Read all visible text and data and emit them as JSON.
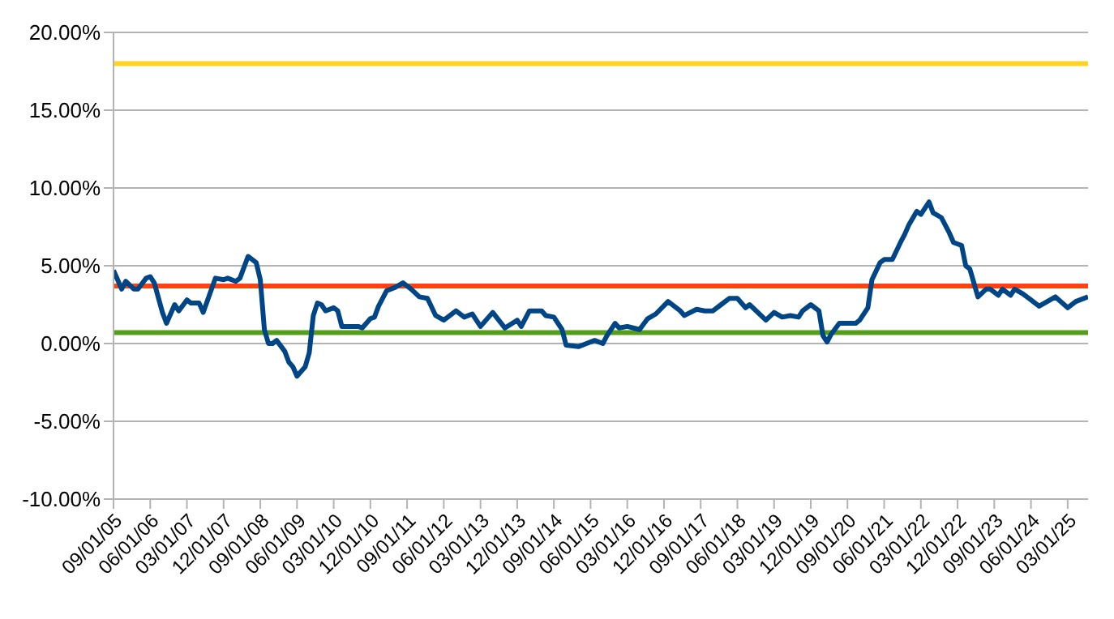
{
  "chart_data": {
    "type": "line",
    "xlim": [
      "2005-09",
      "2025-08"
    ],
    "xticks": [
      {
        "value": "2005-09",
        "label": "09/01/05"
      },
      {
        "value": "2006-06",
        "label": "06/01/06"
      },
      {
        "value": "2007-03",
        "label": "03/01/07"
      },
      {
        "value": "2007-12",
        "label": "12/01/07"
      },
      {
        "value": "2008-09",
        "label": "09/01/08"
      },
      {
        "value": "2009-06",
        "label": "06/01/09"
      },
      {
        "value": "2010-03",
        "label": "03/01/10"
      },
      {
        "value": "2010-12",
        "label": "12/01/10"
      },
      {
        "value": "2011-09",
        "label": "09/01/11"
      },
      {
        "value": "2012-06",
        "label": "06/01/12"
      },
      {
        "value": "2013-03",
        "label": "03/01/13"
      },
      {
        "value": "2013-12",
        "label": "12/01/13"
      },
      {
        "value": "2014-09",
        "label": "09/01/14"
      },
      {
        "value": "2015-06",
        "label": "06/01/15"
      },
      {
        "value": "2016-03",
        "label": "03/01/16"
      },
      {
        "value": "2016-12",
        "label": "12/01/16"
      },
      {
        "value": "2017-09",
        "label": "09/01/17"
      },
      {
        "value": "2018-06",
        "label": "06/01/18"
      },
      {
        "value": "2019-03",
        "label": "03/01/19"
      },
      {
        "value": "2019-12",
        "label": "12/01/19"
      },
      {
        "value": "2020-09",
        "label": "09/01/20"
      },
      {
        "value": "2021-06",
        "label": "06/01/21"
      },
      {
        "value": "2022-03",
        "label": "03/01/22"
      },
      {
        "value": "2022-12",
        "label": "12/01/22"
      },
      {
        "value": "2023-09",
        "label": "09/01/23"
      },
      {
        "value": "2024-06",
        "label": "06/01/24"
      },
      {
        "value": "2025-03",
        "label": "03/01/25"
      }
    ],
    "ylim": [
      -10,
      20
    ],
    "yticks": [
      {
        "value": -10,
        "label": "-10.00%"
      },
      {
        "value": -5,
        "label": "-5.00%"
      },
      {
        "value": 0,
        "label": "0.00%"
      },
      {
        "value": 5,
        "label": "5.00%"
      },
      {
        "value": 10,
        "label": "10.00%"
      },
      {
        "value": 15,
        "label": "15.00%"
      },
      {
        "value": 20,
        "label": "20.00%"
      }
    ],
    "grid": "y",
    "series": [
      {
        "color": "#004586",
        "x": [
          "2005-09",
          "2005-10",
          "2005-11",
          "2005-12",
          "2006-02",
          "2006-03",
          "2006-05",
          "2006-06",
          "2006-07",
          "2006-09",
          "2006-10",
          "2006-12",
          "2007-01",
          "2007-03",
          "2007-04",
          "2007-06",
          "2007-07",
          "2007-10",
          "2007-12",
          "2008-01",
          "2008-03",
          "2008-04",
          "2008-06",
          "2008-08",
          "2008-09",
          "2008-10",
          "2008-11",
          "2008-12",
          "2009-01",
          "2009-03",
          "2009-04",
          "2009-05",
          "2009-06",
          "2009-08",
          "2009-09",
          "2009-10",
          "2009-11",
          "2009-12",
          "2010-01",
          "2010-03",
          "2010-04",
          "2010-05",
          "2010-07",
          "2010-09",
          "2010-10",
          "2010-12",
          "2011-01",
          "2011-02",
          "2011-04",
          "2011-06",
          "2011-08",
          "2011-10",
          "2011-12",
          "2012-02",
          "2012-04",
          "2012-06",
          "2012-09",
          "2012-11",
          "2013-01",
          "2013-03",
          "2013-06",
          "2013-09",
          "2013-12",
          "2014-01",
          "2014-03",
          "2014-06",
          "2014-07",
          "2014-09",
          "2014-11",
          "2014-12",
          "2015-03",
          "2015-05",
          "2015-07",
          "2015-09",
          "2015-10",
          "2015-12",
          "2016-01",
          "2016-03",
          "2016-06",
          "2016-08",
          "2016-10",
          "2017-01",
          "2017-04",
          "2017-05",
          "2017-08",
          "2017-10",
          "2017-12",
          "2018-02",
          "2018-04",
          "2018-06",
          "2018-08",
          "2018-09",
          "2019-01",
          "2019-03",
          "2019-05",
          "2019-07",
          "2019-09",
          "2019-10",
          "2019-12",
          "2020-02",
          "2020-03",
          "2020-04",
          "2020-05",
          "2020-07",
          "2020-09",
          "2020-11",
          "2020-12",
          "2021-02",
          "2021-03",
          "2021-05",
          "2021-06",
          "2021-08",
          "2021-10",
          "2021-11",
          "2021-12",
          "2022-02",
          "2022-03",
          "2022-05",
          "2022-06",
          "2022-08",
          "2022-10",
          "2022-11",
          "2023-01",
          "2023-02",
          "2023-03",
          "2023-05",
          "2023-07",
          "2023-08",
          "2023-10",
          "2023-11",
          "2024-01",
          "2024-02",
          "2024-04",
          "2024-06",
          "2024-08",
          "2024-10",
          "2024-12",
          "2025-03",
          "2025-05",
          "2025-08"
        ],
        "values": [
          4.7,
          4.1,
          3.5,
          4.0,
          3.5,
          3.5,
          4.2,
          4.3,
          3.9,
          2.0,
          1.3,
          2.5,
          2.1,
          2.8,
          2.6,
          2.6,
          2.0,
          4.2,
          4.1,
          4.2,
          4.0,
          4.2,
          5.6,
          5.2,
          4.1,
          0.9,
          0.0,
          0.0,
          0.2,
          -0.5,
          -1.2,
          -1.5,
          -2.1,
          -1.5,
          -0.6,
          1.8,
          2.6,
          2.5,
          2.1,
          2.3,
          2.1,
          1.1,
          1.1,
          1.1,
          1.0,
          1.6,
          1.7,
          2.4,
          3.4,
          3.6,
          3.9,
          3.5,
          3.0,
          2.9,
          1.8,
          1.5,
          2.1,
          1.7,
          1.9,
          1.1,
          2.0,
          1.0,
          1.5,
          1.1,
          2.1,
          2.1,
          1.8,
          1.7,
          0.9,
          -0.1,
          -0.2,
          0.0,
          0.2,
          0.0,
          0.5,
          1.3,
          1.0,
          1.1,
          0.9,
          1.6,
          1.9,
          2.7,
          2.1,
          1.8,
          2.2,
          2.1,
          2.1,
          2.5,
          2.9,
          2.9,
          2.3,
          2.5,
          1.5,
          2.0,
          1.7,
          1.8,
          1.7,
          2.1,
          2.5,
          2.1,
          0.5,
          0.1,
          0.6,
          1.3,
          1.3,
          1.3,
          1.5,
          2.3,
          4.1,
          5.2,
          5.4,
          5.4,
          6.5,
          7.0,
          7.6,
          8.5,
          8.3,
          9.1,
          8.4,
          8.1,
          7.1,
          6.5,
          6.3,
          5.0,
          4.8,
          3.0,
          3.5,
          3.5,
          3.1,
          3.5,
          3.1,
          3.5,
          3.2,
          2.8,
          2.4,
          2.7,
          3.0,
          2.3,
          2.7,
          3.0
        ]
      }
    ],
    "ref_lines": [
      {
        "axis": "y",
        "value": 18,
        "color": "#ffd320"
      },
      {
        "axis": "y",
        "value": 3.7,
        "color": "#ff420e"
      },
      {
        "axis": "y",
        "value": 0.7,
        "color": "#579d1c"
      }
    ]
  }
}
